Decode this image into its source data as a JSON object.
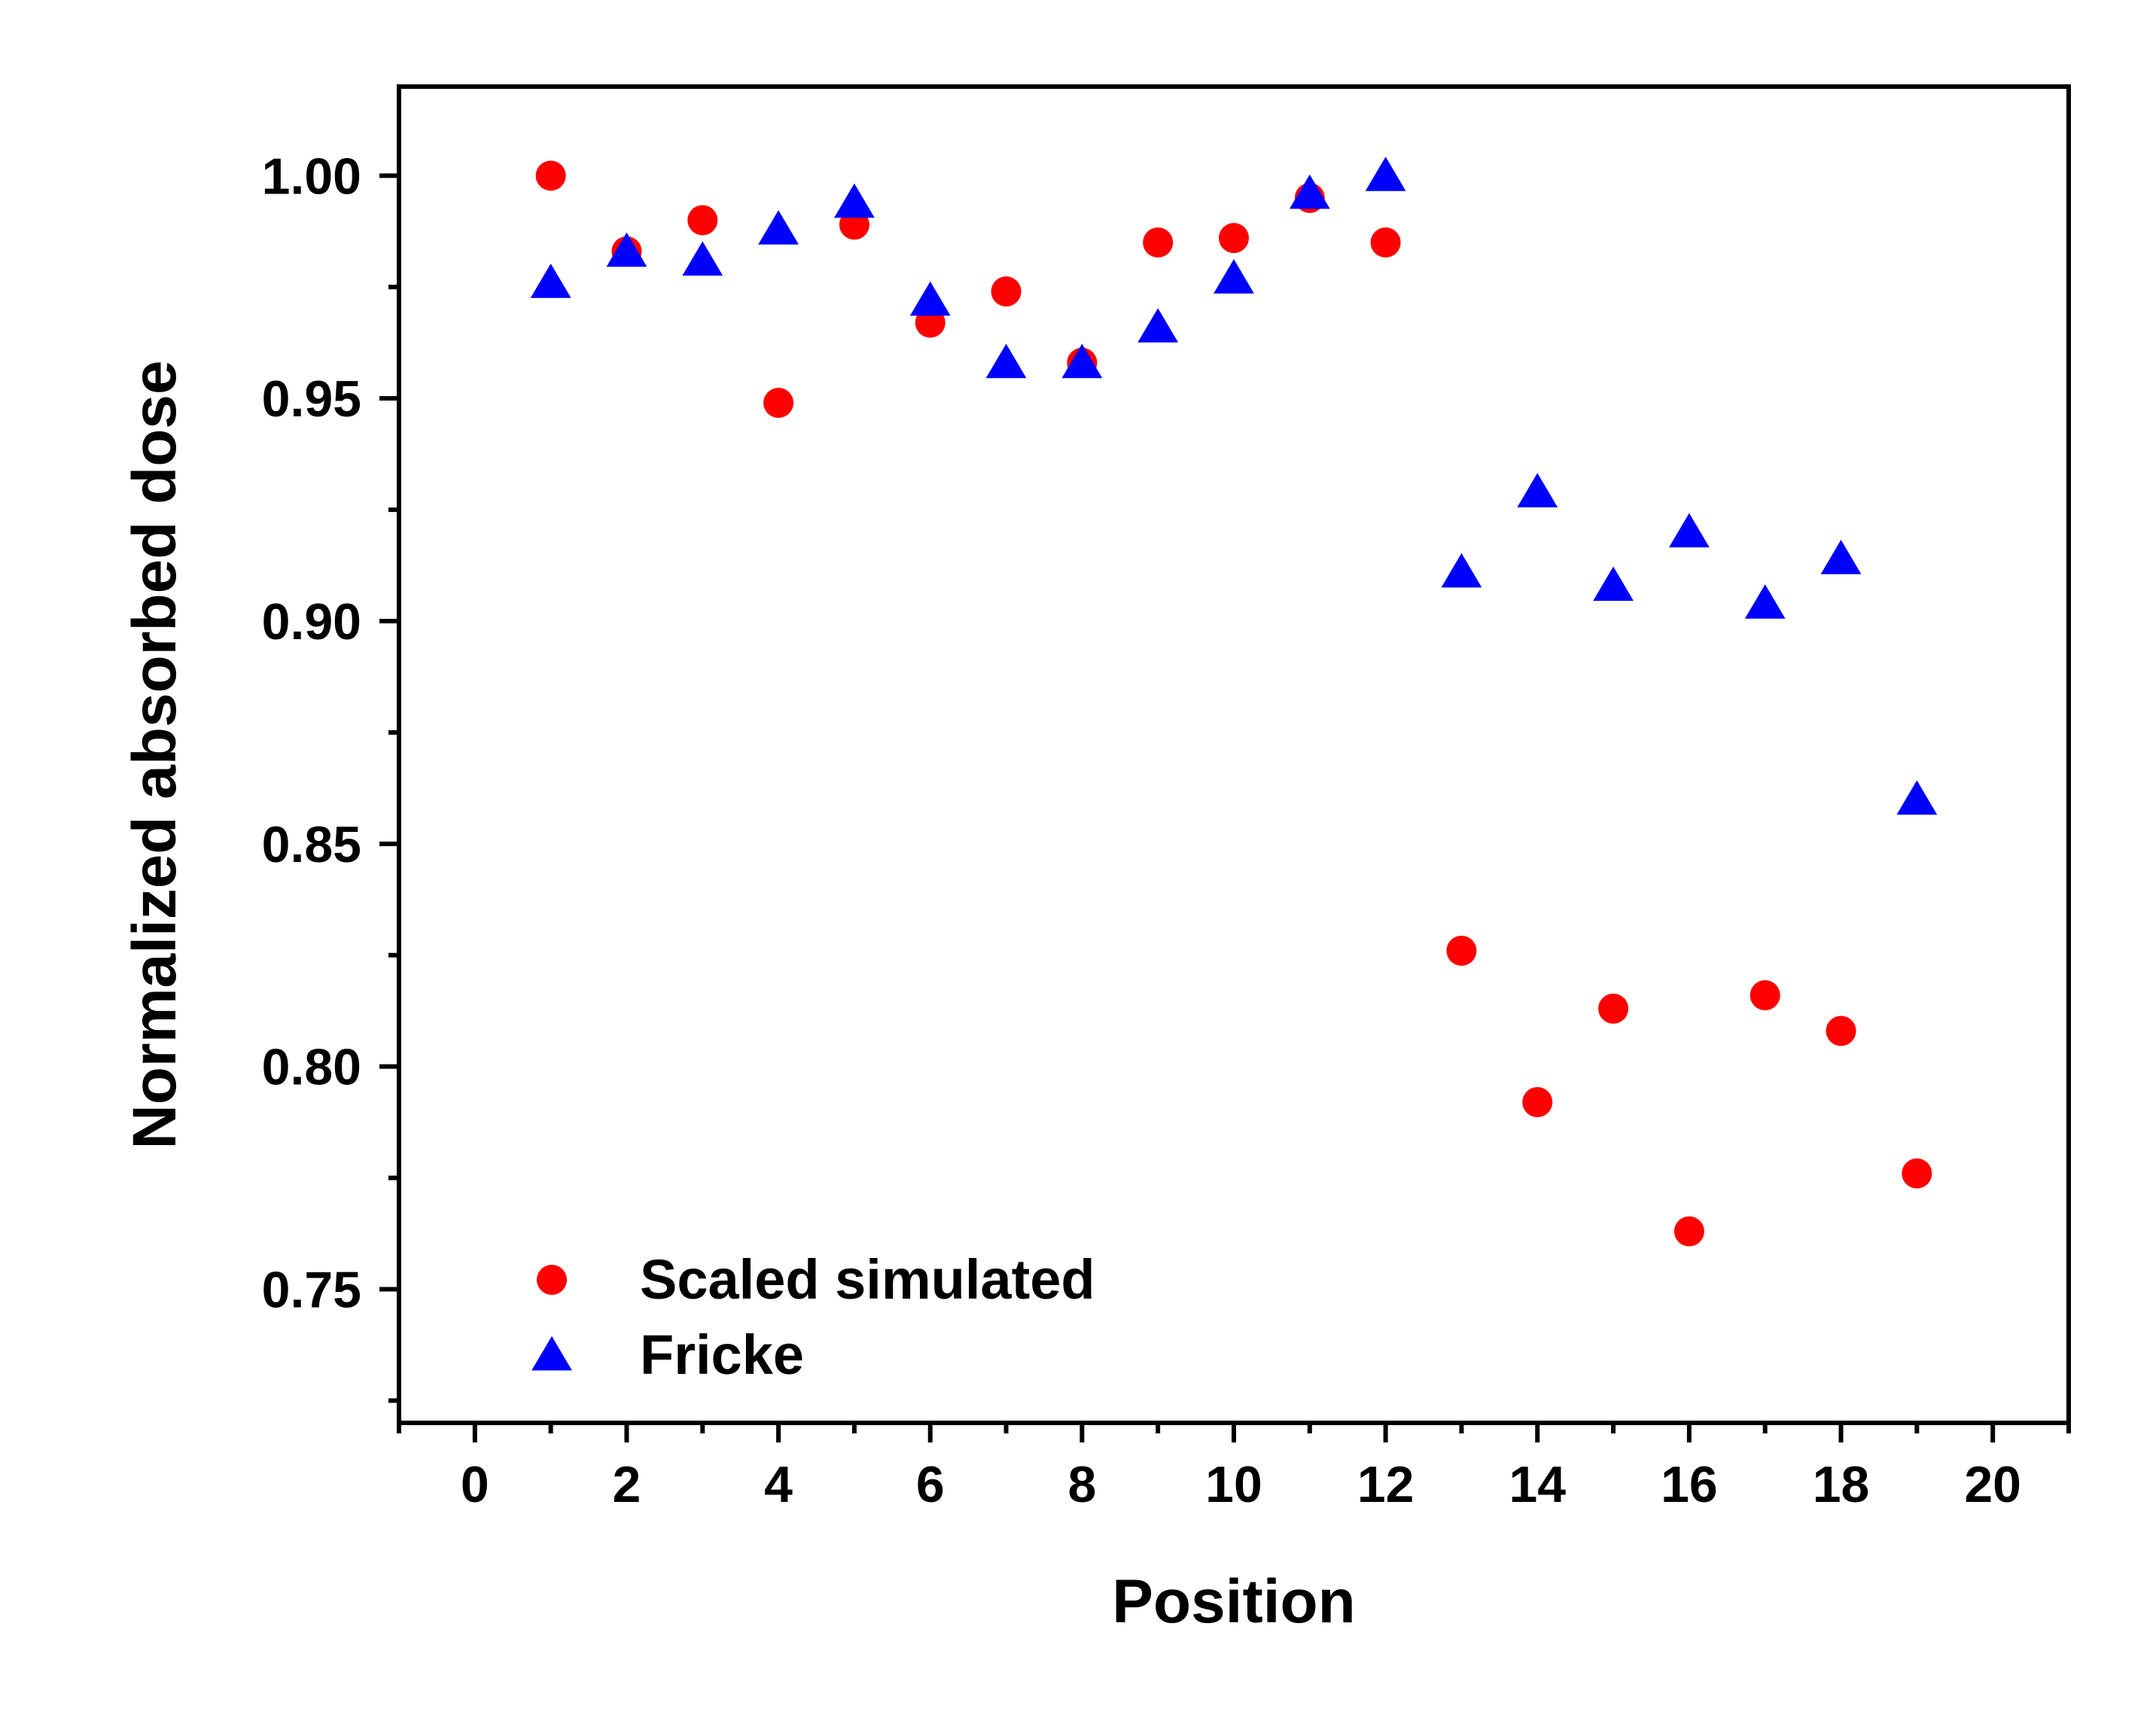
{
  "chart_data": {
    "type": "scatter",
    "title": "",
    "xlabel": "Position",
    "ylabel": "Normalized absorbed dose",
    "xlim": [
      -1,
      21
    ],
    "ylim": [
      0.72,
      1.02
    ],
    "x_ticks": [
      0,
      2,
      4,
      6,
      8,
      10,
      12,
      14,
      16,
      18,
      20
    ],
    "x_tick_labels": [
      "0",
      "2",
      "4",
      "6",
      "8",
      "10",
      "12",
      "14",
      "16",
      "18",
      "20"
    ],
    "x_minor_ticks": [
      -1,
      1,
      3,
      5,
      7,
      9,
      11,
      13,
      15,
      17,
      19,
      21
    ],
    "y_ticks": [
      0.75,
      0.8,
      0.85,
      0.9,
      0.95,
      1.0
    ],
    "y_tick_labels": [
      "0.75",
      "0.80",
      "0.85",
      "0.90",
      "0.95",
      "1.00"
    ],
    "y_minor_ticks": [
      0.725,
      0.775,
      0.825,
      0.875,
      0.925,
      0.975
    ],
    "grid": false,
    "legend_position": "bottom-left",
    "series": [
      {
        "name": "Scaled simulated",
        "marker": "circle",
        "color": "#ff0000",
        "x": [
          1,
          2,
          3,
          4,
          5,
          6,
          7,
          8,
          9,
          10,
          11,
          12,
          13,
          14,
          15,
          16,
          17,
          18,
          19
        ],
        "y": [
          1.0,
          0.983,
          0.99,
          0.949,
          0.989,
          0.967,
          0.974,
          0.958,
          0.985,
          0.986,
          0.995,
          0.985,
          0.826,
          0.792,
          0.813,
          0.763,
          0.816,
          0.808,
          0.776
        ]
      },
      {
        "name": "Fricke",
        "marker": "triangle",
        "color": "#0000ff",
        "x": [
          1,
          2,
          3,
          4,
          5,
          6,
          7,
          8,
          9,
          10,
          11,
          12,
          13,
          14,
          15,
          16,
          17,
          18,
          19
        ],
        "y": [
          0.976,
          0.983,
          0.981,
          0.988,
          0.994,
          0.972,
          0.958,
          0.958,
          0.966,
          0.977,
          0.996,
          1.0,
          0.911,
          0.929,
          0.908,
          0.92,
          0.904,
          0.914,
          0.86
        ]
      }
    ]
  }
}
